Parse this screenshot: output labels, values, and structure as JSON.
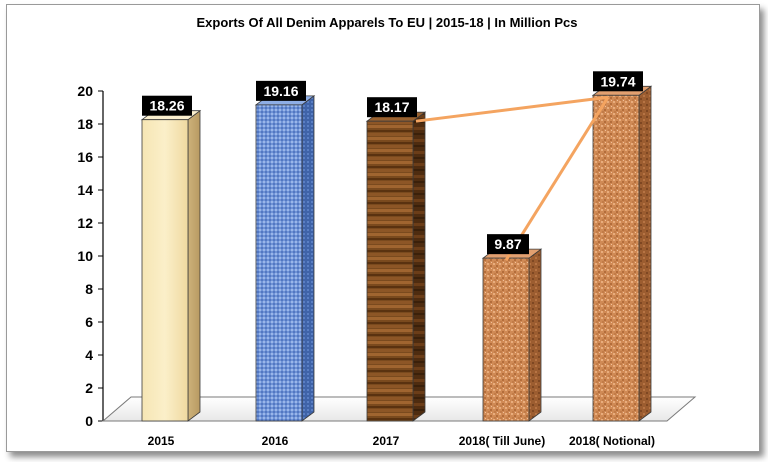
{
  "chart_data": {
    "type": "bar",
    "title": "Exports Of All Denim Apparels To EU | 2015-18 | In Million Pcs",
    "xlabel": "",
    "ylabel": "",
    "ylim": [
      0,
      20
    ],
    "yticks": [
      0,
      2,
      4,
      6,
      8,
      10,
      12,
      14,
      16,
      18,
      20
    ],
    "categories": [
      "2015",
      "2016",
      "2017",
      "2018( Till June)",
      "2018( Notional)"
    ],
    "values": [
      18.26,
      19.16,
      18.17,
      9.87,
      19.74
    ],
    "data_labels": [
      "18.26",
      "19.16",
      "18.17",
      "9.87",
      "19.74"
    ],
    "bar_styles": [
      "cream-parchment",
      "blue-denim",
      "wood-grain",
      "orange-granite",
      "orange-granite"
    ],
    "overlay_line": {
      "color": "#f4a460",
      "segments": [
        [
          "2017",
          "2018( Notional)"
        ],
        [
          "2018( Till June)",
          "2018( Notional)"
        ]
      ]
    },
    "grid": false,
    "legend": "none"
  }
}
